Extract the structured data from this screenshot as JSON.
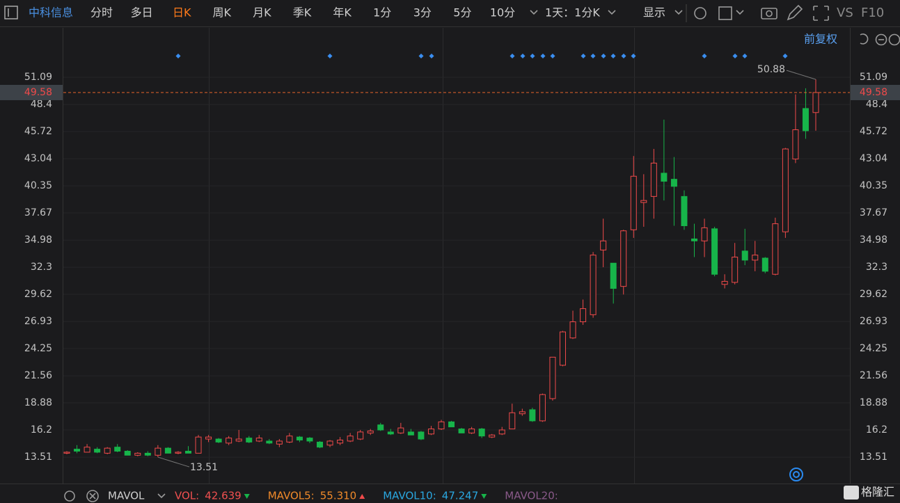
{
  "toolbar": {
    "stock_name": "中科信息",
    "tabs": [
      "分时",
      "多日",
      "日K",
      "周K",
      "月K",
      "季K",
      "年K",
      "1分",
      "3分",
      "5分",
      "10分"
    ],
    "active_tab": 2,
    "period_select": "1天：1分K",
    "display": "显示",
    "vs": "VS",
    "f10": "F10"
  },
  "adjust_mode": "前复权",
  "indicator_bar": {
    "name": "MAVOL",
    "items": [
      {
        "label": "VOL:",
        "value": "42.639",
        "color": "#f05050",
        "trend": "down"
      },
      {
        "label": "MAVOL5:",
        "value": "55.310",
        "color": "#f08a2a",
        "trend": "up"
      },
      {
        "label": "MAVOL10:",
        "value": "47.247",
        "color": "#2aa7e0",
        "trend": "down"
      },
      {
        "label": "MAVOL20:",
        "color": "#8a5a8a"
      }
    ]
  },
  "watermark": "格隆汇",
  "chart_data": {
    "type": "candlestick",
    "open": [
      13.9,
      14.3,
      14.0,
      14.3,
      13.9,
      14.5,
      14.1,
      13.7,
      13.9,
      13.7,
      14.4,
      13.9,
      14.1,
      13.9,
      15.3,
      15.3,
      14.9,
      15.1,
      15.4,
      15.1,
      15.1,
      14.8,
      15.0,
      15.5,
      15.4,
      15.0,
      14.7,
      14.9,
      15.1,
      15.3,
      15.9,
      16.7,
      16.0,
      15.9,
      16.0,
      16.0,
      15.8,
      16.3,
      17.0,
      16.3,
      15.9,
      16.3,
      15.5,
      15.8,
      16.3,
      17.8,
      18.2,
      17.1,
      19.3,
      22.6,
      25.3,
      26.9,
      27.6,
      34.0,
      32.7,
      30.4,
      36.0,
      38.7,
      39.3,
      41.6,
      41.0,
      39.3,
      35.1,
      34.9,
      36.1,
      30.6,
      30.8,
      33.9,
      33.0,
      33.2,
      31.6,
      35.8,
      43.0,
      48.0,
      47.6
    ],
    "high": [
      14.1,
      14.7,
      14.8,
      14.5,
      14.5,
      14.8,
      14.2,
      14.0,
      14.1,
      14.7,
      14.5,
      14.1,
      14.6,
      15.7,
      15.7,
      15.4,
      15.6,
      16.2,
      15.6,
      15.7,
      15.3,
      15.3,
      15.9,
      15.6,
      15.5,
      15.1,
      15.2,
      15.5,
      15.9,
      16.2,
      16.3,
      16.9,
      16.3,
      16.9,
      16.3,
      16.1,
      16.6,
      17.2,
      17.1,
      16.4,
      16.5,
      16.4,
      15.8,
      16.5,
      18.8,
      18.3,
      18.4,
      19.8,
      23.4,
      26.0,
      28.0,
      29.1,
      33.8,
      37.1,
      32.7,
      36.0,
      43.3,
      41.5,
      44.0,
      46.9,
      43.2,
      39.9,
      36.6,
      37.1,
      36.3,
      31.6,
      34.7,
      36.1,
      34.9,
      33.3,
      37.2,
      44.1,
      49.4,
      50.0,
      50.88
    ],
    "low": [
      13.8,
      13.9,
      14.0,
      13.9,
      13.8,
      14.0,
      13.7,
      13.6,
      13.6,
      13.51,
      13.9,
      13.8,
      13.9,
      13.9,
      15.0,
      14.9,
      14.7,
      15.0,
      14.9,
      15.0,
      14.8,
      14.5,
      14.9,
      15.0,
      14.9,
      14.4,
      14.5,
      14.7,
      15.0,
      15.2,
      15.7,
      16.1,
      15.7,
      15.8,
      15.7,
      15.2,
      15.7,
      16.2,
      16.5,
      15.9,
      15.8,
      15.4,
      15.4,
      15.7,
      16.3,
      17.6,
      17.0,
      17.0,
      19.1,
      22.5,
      25.2,
      26.6,
      27.3,
      32.3,
      28.7,
      29.6,
      35.2,
      36.3,
      37.1,
      38.9,
      36.4,
      36.0,
      33.3,
      33.3,
      31.4,
      30.2,
      30.6,
      32.5,
      31.9,
      31.7,
      31.5,
      35.2,
      42.6,
      45.0,
      45.8
    ],
    "close": [
      14.0,
      14.1,
      14.5,
      14.0,
      14.4,
      14.1,
      13.7,
      13.9,
      13.7,
      14.4,
      13.9,
      14.0,
      13.9,
      15.5,
      15.5,
      15.0,
      15.4,
      15.3,
      15.0,
      15.4,
      14.9,
      15.1,
      15.6,
      15.2,
      15.1,
      14.5,
      15.1,
      15.2,
      15.6,
      16.0,
      16.1,
      16.2,
      15.8,
      16.4,
      15.7,
      15.3,
      16.3,
      17.0,
      16.5,
      15.9,
      16.3,
      15.6,
      15.7,
      16.2,
      17.9,
      18.0,
      17.1,
      19.7,
      23.4,
      25.9,
      26.9,
      28.2,
      33.5,
      34.9,
      30.2,
      35.9,
      41.3,
      38.9,
      42.6,
      40.8,
      40.3,
      36.4,
      34.9,
      36.2,
      31.6,
      30.9,
      33.3,
      33.0,
      33.5,
      31.9,
      36.6,
      44.0,
      45.9,
      45.8,
      49.58
    ],
    "up_color": "#f04a4a",
    "down_color": "#17b44a",
    "ylim": [
      10.9,
      55.98
    ],
    "yticks": [
      13.51,
      16.2,
      18.88,
      21.56,
      24.25,
      26.93,
      29.62,
      32.3,
      34.98,
      37.67,
      40.35,
      43.04,
      45.72,
      48.4,
      51.09
    ],
    "grid": true,
    "max_index": 74,
    "min_index": 9
  }
}
